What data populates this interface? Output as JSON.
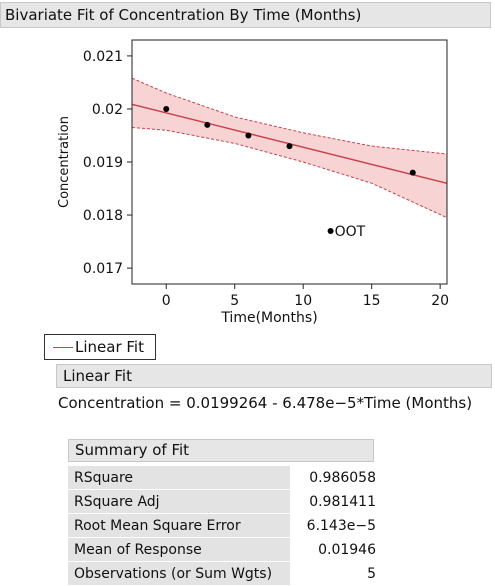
{
  "header": {
    "title": "Bivariate Fit of Concentration By Time (Months)"
  },
  "chart_data": {
    "type": "scatter",
    "xlabel": "Time(Months)",
    "ylabel": "Concentration",
    "xlim": [
      -2.5,
      20.5
    ],
    "ylim": [
      0.0167,
      0.0213
    ],
    "xticks": [
      0,
      5,
      10,
      15,
      20
    ],
    "yticks": [
      0.017,
      0.018,
      0.019,
      0.02,
      0.021
    ],
    "xtick_labels": [
      "0",
      "5",
      "10",
      "15",
      "20"
    ],
    "ytick_labels": [
      "0.017",
      "0.018",
      "0.019",
      "0.02",
      "0.021"
    ],
    "points": [
      {
        "x": 0,
        "y": 0.02
      },
      {
        "x": 3,
        "y": 0.0197
      },
      {
        "x": 6,
        "y": 0.0195
      },
      {
        "x": 9,
        "y": 0.0193
      },
      {
        "x": 18,
        "y": 0.0188
      },
      {
        "x": 12,
        "y": 0.0177,
        "label": "OOT"
      }
    ],
    "fit": {
      "intercept": 0.0199264,
      "slope": -6.478e-05
    },
    "confidence_band": [
      {
        "x": -2.5,
        "lower": 0.01965,
        "upper": 0.02058
      },
      {
        "x": 0,
        "lower": 0.0196,
        "upper": 0.0203
      },
      {
        "x": 5,
        "lower": 0.01935,
        "upper": 0.01985
      },
      {
        "x": 10,
        "lower": 0.019,
        "upper": 0.01955
      },
      {
        "x": 15,
        "lower": 0.0186,
        "upper": 0.0193
      },
      {
        "x": 20.5,
        "lower": 0.01795,
        "upper": 0.01915
      }
    ],
    "colors": {
      "fit": "#c8404c",
      "band": "#f7d3d3",
      "points": "#000000"
    }
  },
  "legend": {
    "label": "Linear Fit"
  },
  "linear_fit": {
    "header": "Linear Fit",
    "equation": "Concentration = 0.0199264 - 6.478e−5*Time (Months)"
  },
  "summary_of_fit": {
    "header": "Summary of Fit",
    "rows": [
      {
        "label": "RSquare",
        "value": "0.986058"
      },
      {
        "label": "RSquare Adj",
        "value": "0.981411"
      },
      {
        "label": "Root Mean Square Error",
        "value": "6.143e−5"
      },
      {
        "label": "Mean of Response",
        "value": "0.01946"
      },
      {
        "label": "Observations (or Sum Wgts)",
        "value": "5"
      }
    ]
  }
}
